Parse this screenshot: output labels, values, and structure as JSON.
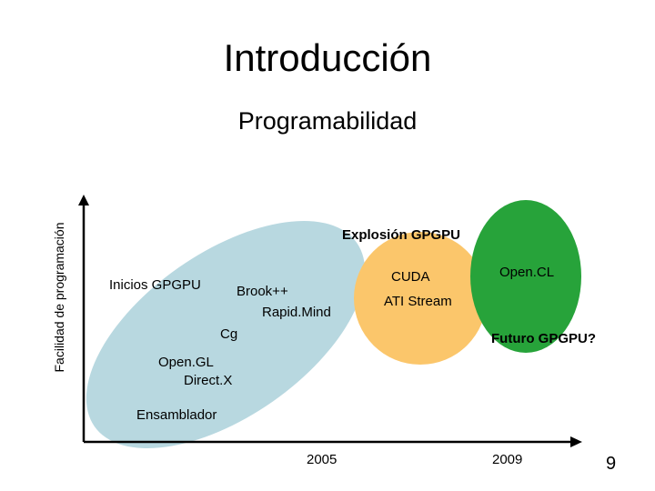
{
  "slide": {
    "title": "Introducción",
    "subtitle": "Programabilidad",
    "y_axis_label": "Facilidad de programación",
    "page_number": "9"
  },
  "diagram": {
    "x_ticks": [
      "2005",
      "2009"
    ],
    "regions": {
      "early": {
        "color": "#b8d8e0",
        "title": "Inicios GPGPU"
      },
      "explosion": {
        "color": "#fbc66b",
        "title": "Explosión GPGPU"
      },
      "future": {
        "color": "#27a33a",
        "title": "Futuro GPGPU?"
      }
    },
    "items": {
      "brook": "Brook++",
      "rapidmind": "Rapid.Mind",
      "cg": "Cg",
      "opengl": "Open.GL",
      "directx": "Direct.X",
      "assembler": "Ensamblador",
      "cuda": "CUDA",
      "ati": "ATI Stream",
      "opencl": "Open.CL"
    },
    "colors": {
      "axis": "#000000",
      "text": "#000000"
    }
  }
}
